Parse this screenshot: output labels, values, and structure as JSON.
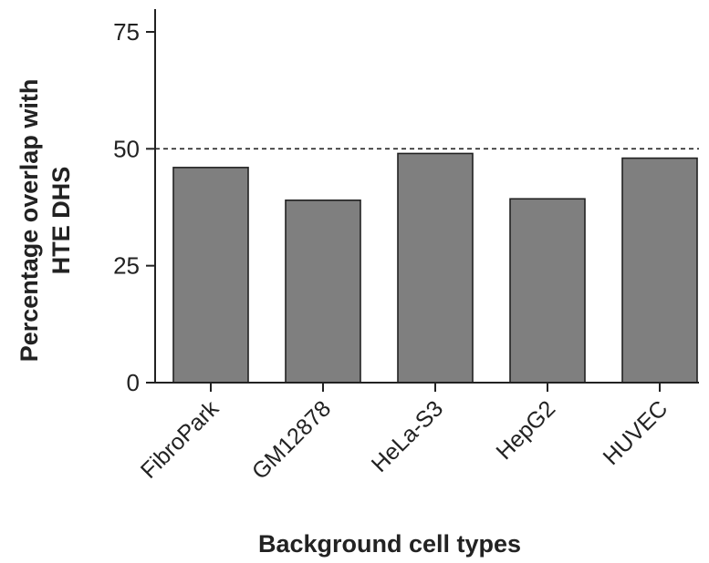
{
  "chart_data": {
    "type": "bar",
    "categories": [
      "FibroPark",
      "GM12878",
      "HeLa-S3",
      "HepG2",
      "HUVEC"
    ],
    "values": [
      46,
      39,
      49,
      39.3,
      48
    ],
    "xlabel": "Background cell types",
    "ylabel_lines": [
      "Percentage overlap with",
      "HTE DHS"
    ],
    "ylim": [
      0,
      80
    ],
    "yticks": [
      0,
      25,
      50,
      75
    ],
    "reference_line": 50,
    "grid": false,
    "bar_color": "#7f7f7f",
    "edge_color": "#222222"
  }
}
